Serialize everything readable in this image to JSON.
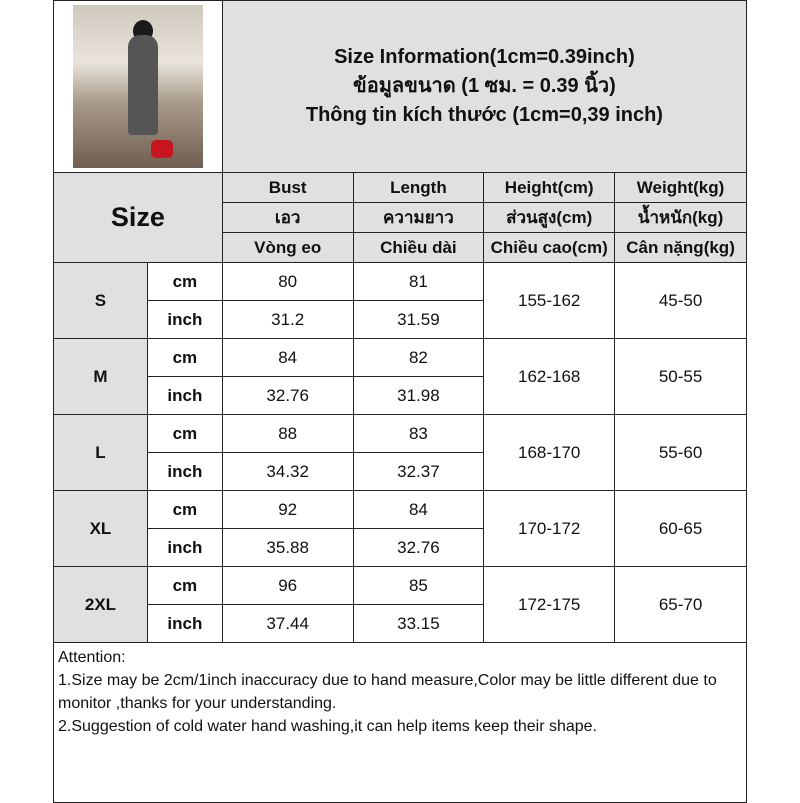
{
  "title": {
    "line1": "Size Information(1cm=0.39inch)",
    "line2": "ข้อมูลขนาด (1 ซม. = 0.39 นิ้ว)",
    "line3": "Thông tin kích thước (1cm=0,39 inch)"
  },
  "header": {
    "size_label": "Size",
    "columns": [
      {
        "en": "Bust",
        "th": "เอว",
        "vi": "Vòng eo"
      },
      {
        "en": "Length",
        "th": "ความยาว",
        "vi": "Chiều dài"
      },
      {
        "en": "Height(cm)",
        "th": "ส่วนสูง(cm)",
        "vi": "Chiều cao(cm)"
      },
      {
        "en": "Weight(kg)",
        "th": "น้ำหนัก(kg)",
        "vi": "Cân nặng(kg)"
      }
    ]
  },
  "units": {
    "cm": "cm",
    "inch": "inch"
  },
  "rows": [
    {
      "size": "S",
      "bust_cm": "80",
      "length_cm": "81",
      "bust_in": "31.2",
      "length_in": "31.59",
      "height": "155-162",
      "weight": "45-50"
    },
    {
      "size": "M",
      "bust_cm": "84",
      "length_cm": "82",
      "bust_in": "32.76",
      "length_in": "31.98",
      "height": "162-168",
      "weight": "50-55"
    },
    {
      "size": "L",
      "bust_cm": "88",
      "length_cm": "83",
      "bust_in": "34.32",
      "length_in": "32.37",
      "height": "168-170",
      "weight": "55-60"
    },
    {
      "size": "XL",
      "bust_cm": "92",
      "length_cm": "84",
      "bust_in": "35.88",
      "length_in": "32.76",
      "height": "170-172",
      "weight": "60-65"
    },
    {
      "size": "2XL",
      "bust_cm": "96",
      "length_cm": "85",
      "bust_in": "37.44",
      "length_in": "33.15",
      "height": "172-175",
      "weight": "65-70"
    }
  ],
  "notes": {
    "heading": "Attention:",
    "line1": "1.Size may be 2cm/1inch inaccuracy due to hand measure,Color may be little different due to monitor ,thanks for your understanding.",
    "line2": "2.Suggestion of cold water hand washing,it can help items keep their shape."
  }
}
